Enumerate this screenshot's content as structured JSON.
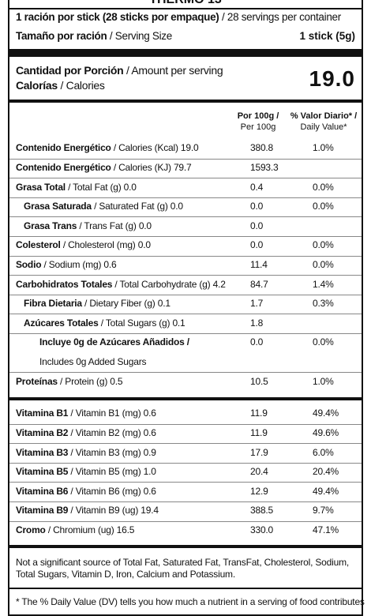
{
  "header": {
    "title": "THERMO 13",
    "servings": {
      "es": "1 ración por stick (28 sticks por empaque)",
      "en": "/ 28 servings per container"
    },
    "size": {
      "es": "Tamaño por ración",
      "en": "/ Serving Size",
      "value": "1 stick (5g)"
    },
    "amount": {
      "es": "Cantidad por Porción",
      "en": "/ Amount per serving"
    },
    "calories": {
      "es": "Calorías",
      "en": "/ Calories",
      "value": "19.0"
    }
  },
  "columns": {
    "per100": {
      "es": "Por 100g /",
      "en": "Per 100g"
    },
    "dv": {
      "es": "% Valor Diario* /",
      "en": "Daily Value*"
    }
  },
  "rows": [
    {
      "es": "Contenido Energético",
      "en": "/ Calories (Kcal) 19.0",
      "per100": "380.8",
      "dv": "1.0%"
    },
    {
      "es": "Contenido Energético",
      "en": "/ Calories (KJ) 79.7",
      "per100": "1593.3"
    },
    {
      "es": "Grasa Total",
      "en": "/ Total Fat (g) 0.0",
      "per100": "0.4",
      "dv": "0.0%"
    },
    {
      "es": "Grasa Saturada",
      "en": "/ Saturated Fat (g) 0.0",
      "per100": "0.0",
      "dv": "0.0%",
      "level": 1
    },
    {
      "es": "Grasa Trans",
      "en": "/ Trans Fat (g) 0.0",
      "per100": "0.0",
      "level": 1
    },
    {
      "es": "Colesterol",
      "en": "/ Cholesterol (mg) 0.0",
      "per100": "0.0",
      "dv": "0.0%"
    },
    {
      "es": "Sodio",
      "en": "/ Sodium (mg) 0.6",
      "per100": "11.4",
      "dv": "0.0%"
    },
    {
      "es": "Carbohidratos Totales",
      "en": "/ Total Carbohydrate (g) 4.2",
      "per100": "84.7",
      "dv": "1.4%"
    },
    {
      "es": "Fibra Dietaria",
      "en": "/ Dietary Fiber (g) 0.1",
      "per100": "1.7",
      "dv": "0.3%",
      "level": 1
    },
    {
      "es": "Azúcares Totales",
      "en": "/ Total Sugars (g) 0.1",
      "per100": "1.8",
      "level": 1
    },
    {
      "es": "Incluye 0g de Azúcares Añadidos /",
      "en2": "Includes 0g Added Sugars",
      "per100": "0.0",
      "dv": "0.0%",
      "level": 2
    },
    {
      "es": "Proteínas",
      "en": "/ Protein (g) 0.5",
      "per100": "10.5",
      "dv": "1.0%"
    }
  ],
  "vitamins": [
    {
      "es": "Vitamina B1",
      "en": "/ Vitamin B1 (mg) 0.6",
      "per100": "11.9",
      "dv": "49.4%"
    },
    {
      "es": "Vitamina B2",
      "en": "/ Vitamin B2 (mg) 0.6",
      "per100": "11.9",
      "dv": "49.6%"
    },
    {
      "es": "Vitamina B3",
      "en": "/ Vitamin B3 (mg) 0.9",
      "per100": "17.9",
      "dv": "6.0%"
    },
    {
      "es": "Vitamina B5",
      "en": "/ Vitamin B5 (mg) 1.0",
      "per100": "20.4",
      "dv": "20.4%"
    },
    {
      "es": "Vitamina B6",
      "en": "/ Vitamin B6 (mg) 0.6",
      "per100": "12.9",
      "dv": "49.4%"
    },
    {
      "es": "Vitamina B9",
      "en": "/ Vitamin B9 (ug) 19.4",
      "per100": "388.5",
      "dv": "9.7%"
    },
    {
      "es": "Cromo",
      "en": "/ Chromium (ug) 16.5",
      "per100": "330.0",
      "dv": "47.1%"
    }
  ],
  "note": "Not a significant source of Total Fat, Saturated Fat, TransFat, Cholesterol, Sodium, Total Sugars, Vitamin D, Iron, Calcium and Potassium.",
  "footnote": "* The % Daily Value (DV) tells you how much a nutrient in a serving of food contributes"
}
